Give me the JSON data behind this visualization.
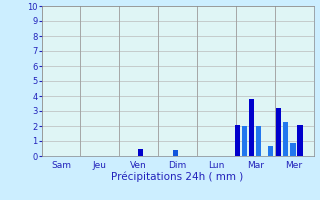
{
  "xlabel": "Précipitations 24h ( mm )",
  "background_color": "#cceeff",
  "plot_background": "#dff5f5",
  "grid_color": "#bbbbbb",
  "ylim": [
    0,
    10
  ],
  "yticks": [
    0,
    1,
    2,
    3,
    4,
    5,
    6,
    7,
    8,
    9,
    10
  ],
  "day_labels": [
    "Sam",
    "Jeu",
    "Ven",
    "Dim",
    "Lun",
    "Mar",
    "Mer"
  ],
  "num_days": 7,
  "bar_x": [
    2.55,
    3.45,
    5.05,
    5.22,
    5.4,
    5.57,
    5.9,
    6.1,
    6.28,
    6.47,
    6.65,
    6.83,
    7.02
  ],
  "bar_h": [
    0.5,
    0.4,
    2.1,
    2.0,
    3.8,
    2.0,
    0.65,
    3.2,
    2.3,
    0.9,
    2.1,
    0.0,
    0.0
  ],
  "bar_colors": [
    "#0000cc",
    "#1155dd",
    "#0000cc",
    "#2277ee",
    "#0000cc",
    "#2277ee",
    "#2277ee",
    "#0000cc",
    "#2277ee",
    "#2277ee",
    "#0000cc",
    "#0000cc",
    "#0000cc"
  ]
}
